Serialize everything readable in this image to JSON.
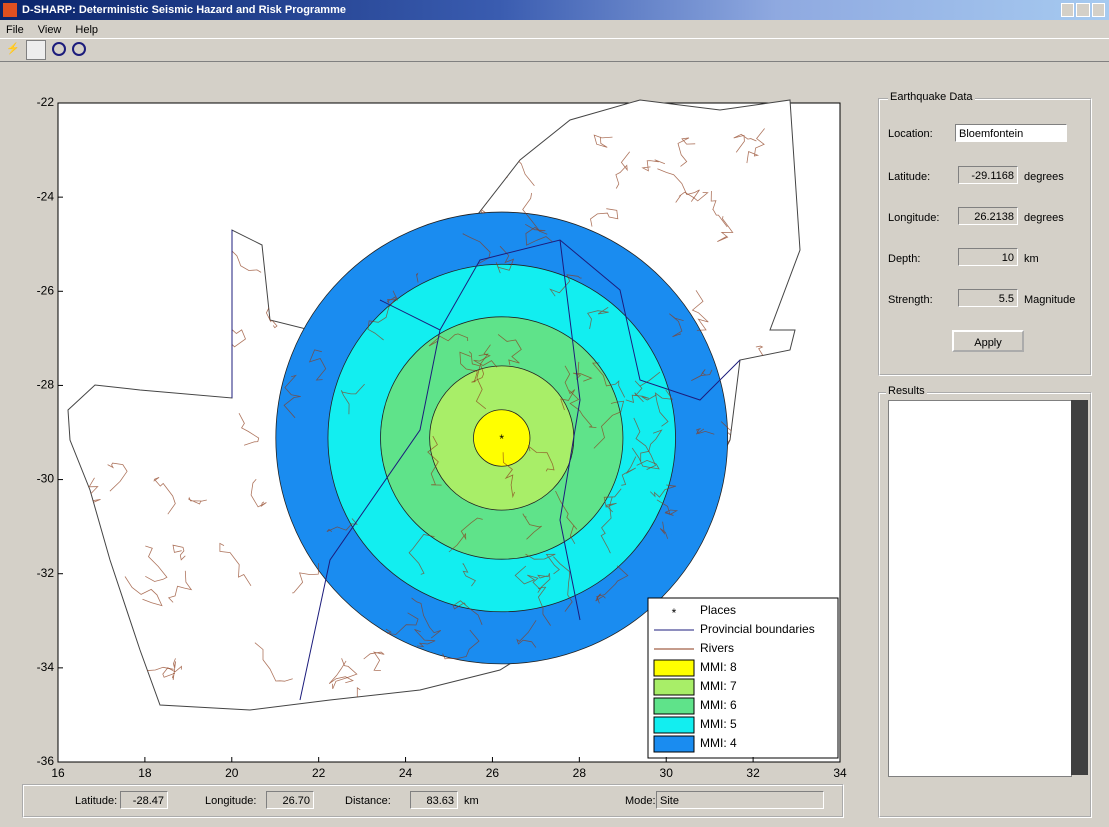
{
  "window": {
    "title": "D-SHARP: Deterministic Seismic Hazard and Risk Programme"
  },
  "menu": [
    "File",
    "View",
    "Help"
  ],
  "chart_data": {
    "type": "map",
    "xlim": [
      16,
      34
    ],
    "ylim": [
      -36,
      -22
    ],
    "xticks": [
      16,
      18,
      20,
      22,
      24,
      26,
      28,
      30,
      32,
      34
    ],
    "yticks": [
      -22,
      -24,
      -26,
      -28,
      -30,
      -32,
      -34,
      -36
    ],
    "epicenter": {
      "lon": 26.2138,
      "lat": -29.1168
    },
    "layers": [
      {
        "name": "Places",
        "color": "#000000"
      },
      {
        "name": "Provincial boundaries",
        "color": "#1c1c7c"
      },
      {
        "name": "Rivers",
        "color": "#8b3a1a"
      }
    ],
    "series": [
      {
        "name": "MMI: 8",
        "color": "#ffff00",
        "radius": 0.65
      },
      {
        "name": "MMI: 7",
        "color": "#a8ee68",
        "radius": 1.66
      },
      {
        "name": "MMI: 6",
        "color": "#5fe38a",
        "radius": 2.79
      },
      {
        "name": "MMI: 5",
        "color": "#12eef0",
        "radius": 4.0
      },
      {
        "name": "MMI: 4",
        "color": "#1a8cf0",
        "radius": 5.2
      }
    ],
    "legend": "lower right"
  },
  "panel": {
    "title": "Earthquake Data",
    "location": {
      "label": "Location:",
      "value": "Bloemfontein"
    },
    "latitude": {
      "label": "Latitude:",
      "unit": "degrees"
    },
    "longitude": {
      "label": "Longitude:",
      "unit": "degrees"
    },
    "depth": {
      "label": "Depth:",
      "value": 10,
      "unit": "km"
    },
    "strength": {
      "label": "Strength:",
      "value": 5.5,
      "unit": "Magnitude"
    },
    "button": "Apply"
  },
  "results": {
    "title": "Results"
  },
  "status": [
    {
      "label": "Latitude:",
      "value": "-28.47"
    },
    {
      "label": "Longitude:",
      "value": "26.70"
    },
    {
      "label": "Distance:",
      "value": "83.63",
      "unit": "km"
    },
    {
      "label": "Mode:",
      "value": "Site"
    }
  ]
}
